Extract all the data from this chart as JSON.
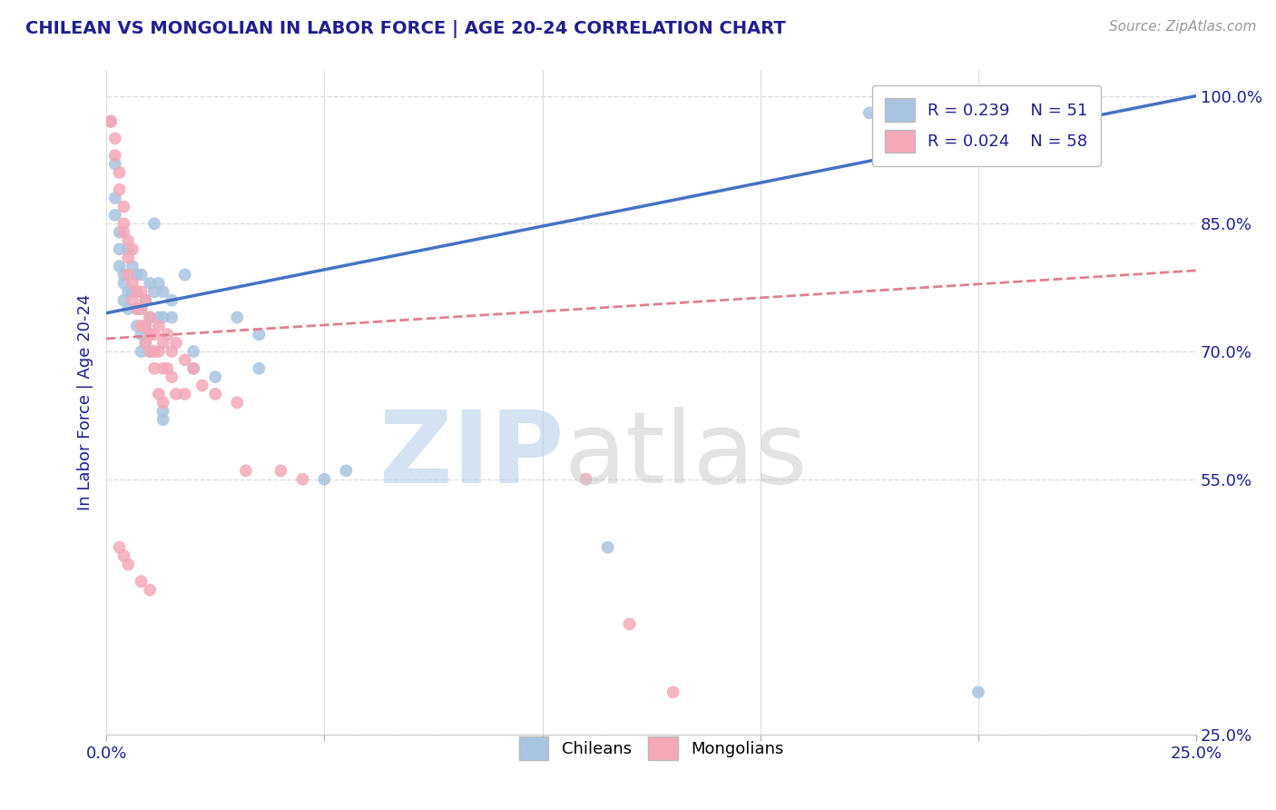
{
  "title": "CHILEAN VS MONGOLIAN IN LABOR FORCE | AGE 20-24 CORRELATION CHART",
  "source": "Source: ZipAtlas.com",
  "ylabel": "In Labor Force | Age 20-24",
  "xlim": [
    0.0,
    0.25
  ],
  "ylim": [
    0.25,
    1.03
  ],
  "yticks": [
    0.25,
    0.55,
    0.7,
    0.85,
    1.0
  ],
  "ytick_labels": [
    "25.0%",
    "55.0%",
    "70.0%",
    "85.0%",
    "100.0%"
  ],
  "xticks": [
    0.0,
    0.05,
    0.1,
    0.15,
    0.2,
    0.25
  ],
  "xtick_labels": [
    "0.0%",
    "",
    "",
    "",
    "",
    "25.0%"
  ],
  "legend_r_chilean": "R = 0.239",
  "legend_n_chilean": "N = 51",
  "legend_r_mongolian": "R = 0.024",
  "legend_n_mongolian": "N = 58",
  "chilean_color": "#a8c4e0",
  "mongolian_color": "#f4a8b8",
  "chilean_line_color": "#4472c4",
  "mongolian_line_color": "#e08090",
  "background_color": "#ffffff",
  "grid_color": "#dddddd",
  "title_color": "#1f1f8f",
  "axis_label_color": "#1f1f8f",
  "tick_color": "#1f1f8f",
  "chilean_scatter": [
    [
      0.001,
      0.97
    ],
    [
      0.002,
      0.92
    ],
    [
      0.002,
      0.88
    ],
    [
      0.002,
      0.86
    ],
    [
      0.003,
      0.84
    ],
    [
      0.003,
      0.82
    ],
    [
      0.003,
      0.8
    ],
    [
      0.004,
      0.79
    ],
    [
      0.004,
      0.78
    ],
    [
      0.004,
      0.76
    ],
    [
      0.005,
      0.82
    ],
    [
      0.005,
      0.77
    ],
    [
      0.005,
      0.75
    ],
    [
      0.006,
      0.8
    ],
    [
      0.006,
      0.77
    ],
    [
      0.007,
      0.79
    ],
    [
      0.007,
      0.75
    ],
    [
      0.007,
      0.73
    ],
    [
      0.008,
      0.79
    ],
    [
      0.008,
      0.75
    ],
    [
      0.008,
      0.72
    ],
    [
      0.008,
      0.7
    ],
    [
      0.009,
      0.76
    ],
    [
      0.009,
      0.73
    ],
    [
      0.009,
      0.71
    ],
    [
      0.01,
      0.78
    ],
    [
      0.01,
      0.74
    ],
    [
      0.01,
      0.72
    ],
    [
      0.01,
      0.7
    ],
    [
      0.011,
      0.85
    ],
    [
      0.011,
      0.77
    ],
    [
      0.012,
      0.78
    ],
    [
      0.012,
      0.74
    ],
    [
      0.013,
      0.77
    ],
    [
      0.013,
      0.74
    ],
    [
      0.013,
      0.63
    ],
    [
      0.013,
      0.62
    ],
    [
      0.015,
      0.76
    ],
    [
      0.015,
      0.74
    ],
    [
      0.018,
      0.79
    ],
    [
      0.02,
      0.7
    ],
    [
      0.02,
      0.68
    ],
    [
      0.025,
      0.67
    ],
    [
      0.03,
      0.74
    ],
    [
      0.035,
      0.72
    ],
    [
      0.035,
      0.68
    ],
    [
      0.05,
      0.55
    ],
    [
      0.055,
      0.56
    ],
    [
      0.115,
      0.47
    ],
    [
      0.175,
      0.98
    ],
    [
      0.2,
      0.3
    ]
  ],
  "mongolian_scatter": [
    [
      0.001,
      0.97
    ],
    [
      0.001,
      0.97
    ],
    [
      0.002,
      0.95
    ],
    [
      0.002,
      0.93
    ],
    [
      0.003,
      0.91
    ],
    [
      0.003,
      0.89
    ],
    [
      0.004,
      0.87
    ],
    [
      0.004,
      0.85
    ],
    [
      0.004,
      0.84
    ],
    [
      0.005,
      0.83
    ],
    [
      0.005,
      0.81
    ],
    [
      0.005,
      0.79
    ],
    [
      0.006,
      0.82
    ],
    [
      0.006,
      0.78
    ],
    [
      0.006,
      0.76
    ],
    [
      0.007,
      0.77
    ],
    [
      0.007,
      0.75
    ],
    [
      0.008,
      0.77
    ],
    [
      0.008,
      0.75
    ],
    [
      0.008,
      0.73
    ],
    [
      0.009,
      0.76
    ],
    [
      0.009,
      0.73
    ],
    [
      0.009,
      0.71
    ],
    [
      0.01,
      0.74
    ],
    [
      0.01,
      0.72
    ],
    [
      0.01,
      0.7
    ],
    [
      0.011,
      0.72
    ],
    [
      0.011,
      0.7
    ],
    [
      0.011,
      0.68
    ],
    [
      0.012,
      0.73
    ],
    [
      0.012,
      0.7
    ],
    [
      0.012,
      0.65
    ],
    [
      0.013,
      0.71
    ],
    [
      0.013,
      0.68
    ],
    [
      0.013,
      0.64
    ],
    [
      0.014,
      0.72
    ],
    [
      0.014,
      0.68
    ],
    [
      0.015,
      0.7
    ],
    [
      0.015,
      0.67
    ],
    [
      0.016,
      0.71
    ],
    [
      0.016,
      0.65
    ],
    [
      0.018,
      0.69
    ],
    [
      0.018,
      0.65
    ],
    [
      0.02,
      0.68
    ],
    [
      0.022,
      0.66
    ],
    [
      0.025,
      0.65
    ],
    [
      0.03,
      0.64
    ],
    [
      0.032,
      0.56
    ],
    [
      0.04,
      0.56
    ],
    [
      0.045,
      0.55
    ],
    [
      0.003,
      0.47
    ],
    [
      0.004,
      0.46
    ],
    [
      0.005,
      0.45
    ],
    [
      0.008,
      0.43
    ],
    [
      0.01,
      0.42
    ],
    [
      0.11,
      0.55
    ],
    [
      0.12,
      0.38
    ],
    [
      0.13,
      0.3
    ]
  ]
}
